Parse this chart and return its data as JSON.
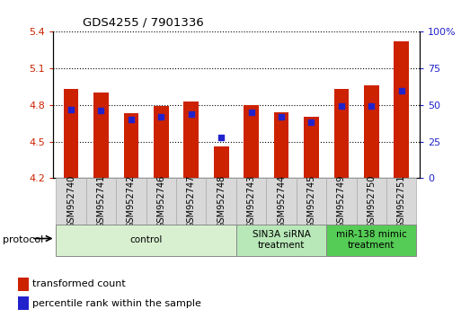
{
  "title": "GDS4255 / 7901336",
  "samples": [
    "GSM952740",
    "GSM952741",
    "GSM952742",
    "GSM952746",
    "GSM952747",
    "GSM952748",
    "GSM952743",
    "GSM952744",
    "GSM952745",
    "GSM952749",
    "GSM952750",
    "GSM952751"
  ],
  "transformed_count": [
    4.93,
    4.9,
    4.73,
    4.79,
    4.83,
    4.46,
    4.8,
    4.74,
    4.7,
    4.93,
    4.96,
    5.32
  ],
  "percentile_rank": [
    47,
    46,
    40,
    42,
    44,
    28,
    45,
    42,
    38,
    49,
    49,
    60
  ],
  "ylim_left": [
    4.2,
    5.4
  ],
  "ylim_right": [
    0,
    100
  ],
  "yticks_left": [
    4.2,
    4.5,
    4.8,
    5.1,
    5.4
  ],
  "yticks_right": [
    0,
    25,
    50,
    75,
    100
  ],
  "bar_color": "#cc2200",
  "dot_color": "#2222cc",
  "groups": [
    {
      "label": "control",
      "start": 0,
      "end": 6,
      "color": "#d8f0d0"
    },
    {
      "label": "SIN3A siRNA\ntreatment",
      "start": 6,
      "end": 9,
      "color": "#b8e8b8"
    },
    {
      "label": "miR-138 mimic\ntreatment",
      "start": 9,
      "end": 12,
      "color": "#55cc55"
    }
  ],
  "legend_labels": [
    "transformed count",
    "percentile rank within the sample"
  ],
  "bar_width": 0.5,
  "base_value": 4.2,
  "xlabel_fontsize": 7.0,
  "ylabel_left_color": "#cc2200",
  "ylabel_right_color": "#2222cc",
  "grid_color": "#000000",
  "tick_label_color": "#000000",
  "protocol_label": "protocol"
}
